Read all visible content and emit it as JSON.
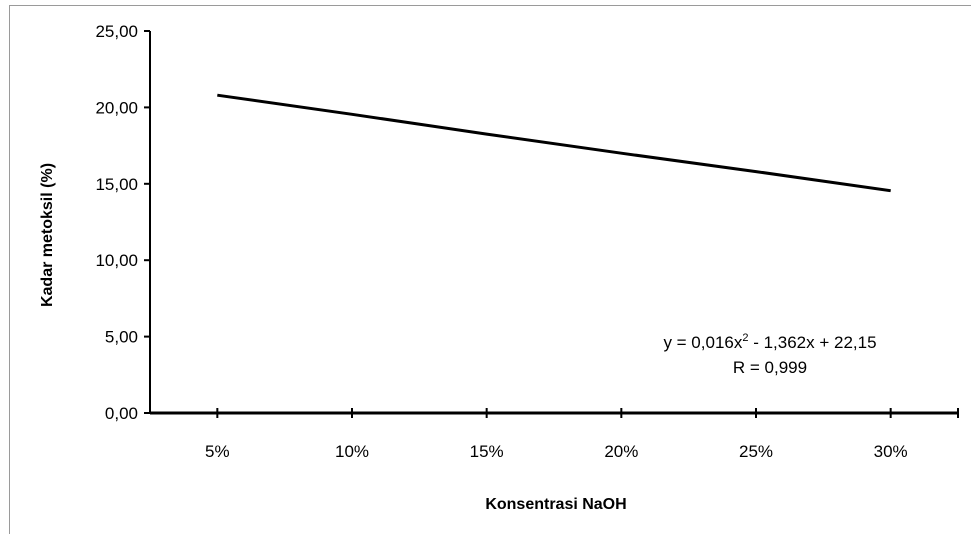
{
  "chart_data": {
    "type": "line",
    "title": "",
    "xlabel": "Konsentrasi NaOH",
    "ylabel": "Kadar metoksil (%)",
    "categories": [
      "5%",
      "10%",
      "15%",
      "20%",
      "25%",
      "30%"
    ],
    "x": [
      5,
      10,
      15,
      20,
      25,
      30
    ],
    "series": [
      {
        "values": [
          20.8,
          19.55,
          18.25,
          17.0,
          15.8,
          14.55
        ],
        "color": "#000000"
      }
    ],
    "ylim": [
      0,
      25
    ],
    "yticks": [
      0,
      5,
      10,
      15,
      20,
      25
    ],
    "ytick_labels": [
      "0,00",
      "5,00",
      "10,00",
      "15,00",
      "20,00",
      "25,00"
    ],
    "grid": false,
    "legend": "none",
    "annotation": {
      "equation_prefix": "y = 0,016x",
      "equation_exponent": "2",
      "equation_suffix": " - 1,362x + 22,15",
      "r_text": "R = 0,999"
    }
  }
}
